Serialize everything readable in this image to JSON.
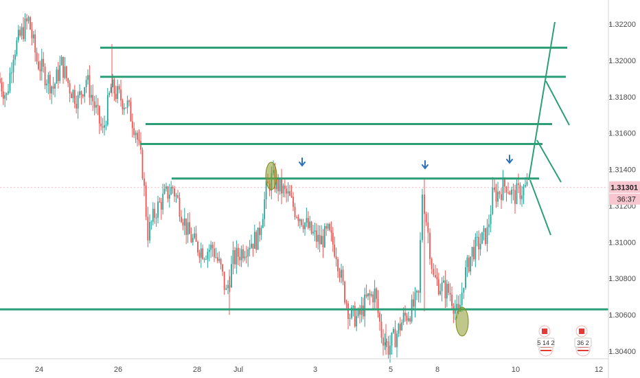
{
  "chart_data": {
    "type": "candlestick",
    "title": "",
    "xlabel": "",
    "ylabel": "",
    "ylim": [
      1.3034,
      1.323
    ],
    "x_axis": {
      "tick_labels": [
        "24",
        "26",
        "28",
        "Jul",
        "3",
        "5",
        "8",
        "10",
        "12"
      ]
    },
    "y_axis": {
      "tick_labels": [
        "1.32200",
        "1.32000",
        "1.31800",
        "1.31600",
        "1.31400",
        "1.31200",
        "1.31000",
        "1.30800",
        "1.30600",
        "1.30400"
      ],
      "tick_values": [
        1.322,
        1.32,
        1.318,
        1.316,
        1.314,
        1.312,
        1.31,
        1.308,
        1.306,
        1.304
      ]
    },
    "current_price": {
      "label": "1.31301",
      "value": 1.31301,
      "countdown": "36:37"
    },
    "horizontal_levels": [
      1.3207,
      1.3191,
      1.3165,
      1.3154,
      1.3135,
      1.3063
    ],
    "up_color": "#26a69a",
    "down_color": "#ef5350",
    "line_color": "#2b9e76",
    "marker_color": "#2c6fbb",
    "ellipse_color": "#8a9a2a",
    "series": [
      {
        "name": "",
        "values": []
      }
    ],
    "candles_summary": [
      {
        "x": 0,
        "close": 1.319
      },
      {
        "x": 12,
        "close": 1.318
      },
      {
        "x": 22,
        "close": 1.3205
      },
      {
        "x": 34,
        "close": 1.3215
      },
      {
        "x": 44,
        "close": 1.3222
      },
      {
        "x": 56,
        "close": 1.32
      },
      {
        "x": 68,
        "close": 1.3192
      },
      {
        "x": 80,
        "close": 1.3185
      },
      {
        "x": 92,
        "close": 1.3198
      },
      {
        "x": 104,
        "close": 1.3185
      },
      {
        "x": 116,
        "close": 1.3178
      },
      {
        "x": 128,
        "close": 1.319
      },
      {
        "x": 140,
        "close": 1.3175
      },
      {
        "x": 152,
        "close": 1.316
      },
      {
        "x": 164,
        "close": 1.3185
      },
      {
        "x": 176,
        "close": 1.318
      },
      {
        "x": 188,
        "close": 1.3175
      },
      {
        "x": 200,
        "close": 1.3162
      },
      {
        "x": 210,
        "close": 1.314
      },
      {
        "x": 218,
        "close": 1.3105
      },
      {
        "x": 230,
        "close": 1.3118
      },
      {
        "x": 242,
        "close": 1.3125
      },
      {
        "x": 254,
        "close": 1.313
      },
      {
        "x": 264,
        "close": 1.312
      },
      {
        "x": 276,
        "close": 1.3105
      },
      {
        "x": 288,
        "close": 1.3098
      },
      {
        "x": 300,
        "close": 1.3095
      },
      {
        "x": 312,
        "close": 1.3097
      },
      {
        "x": 324,
        "close": 1.3085
      },
      {
        "x": 332,
        "close": 1.3072
      },
      {
        "x": 342,
        "close": 1.309
      },
      {
        "x": 354,
        "close": 1.3095
      },
      {
        "x": 366,
        "close": 1.31
      },
      {
        "x": 378,
        "close": 1.3102
      },
      {
        "x": 390,
        "close": 1.3128
      },
      {
        "x": 398,
        "close": 1.3135
      },
      {
        "x": 410,
        "close": 1.313
      },
      {
        "x": 422,
        "close": 1.3125
      },
      {
        "x": 432,
        "close": 1.3118
      },
      {
        "x": 444,
        "close": 1.3112
      },
      {
        "x": 456,
        "close": 1.3105
      },
      {
        "x": 468,
        "close": 1.31
      },
      {
        "x": 480,
        "close": 1.3105
      },
      {
        "x": 492,
        "close": 1.3095
      },
      {
        "x": 502,
        "close": 1.3075
      },
      {
        "x": 512,
        "close": 1.306
      },
      {
        "x": 524,
        "close": 1.3058
      },
      {
        "x": 536,
        "close": 1.3068
      },
      {
        "x": 548,
        "close": 1.3072
      },
      {
        "x": 558,
        "close": 1.305
      },
      {
        "x": 568,
        "close": 1.3042
      },
      {
        "x": 578,
        "close": 1.3048
      },
      {
        "x": 590,
        "close": 1.3058
      },
      {
        "x": 602,
        "close": 1.3063
      },
      {
        "x": 612,
        "close": 1.307
      },
      {
        "x": 618,
        "close": 1.3128
      },
      {
        "x": 626,
        "close": 1.3105
      },
      {
        "x": 634,
        "close": 1.308
      },
      {
        "x": 646,
        "close": 1.3075
      },
      {
        "x": 658,
        "close": 1.3072
      },
      {
        "x": 670,
        "close": 1.3058
      },
      {
        "x": 678,
        "close": 1.308
      },
      {
        "x": 690,
        "close": 1.3095
      },
      {
        "x": 702,
        "close": 1.31
      },
      {
        "x": 712,
        "close": 1.3105
      },
      {
        "x": 720,
        "close": 1.3125
      },
      {
        "x": 730,
        "close": 1.3128
      },
      {
        "x": 740,
        "close": 1.3132
      },
      {
        "x": 750,
        "close": 1.3125
      },
      {
        "x": 760,
        "close": 1.3128
      },
      {
        "x": 770,
        "close": 1.313
      }
    ],
    "annotations": {
      "arrows": [
        {
          "x_frac": 0.5,
          "label": ""
        }
      ]
    }
  },
  "badges": [
    {
      "name": "cad-usd-badge-1",
      "text": "5 14 2"
    },
    {
      "name": "cad-usd-badge-2",
      "text": "36 2"
    }
  ]
}
